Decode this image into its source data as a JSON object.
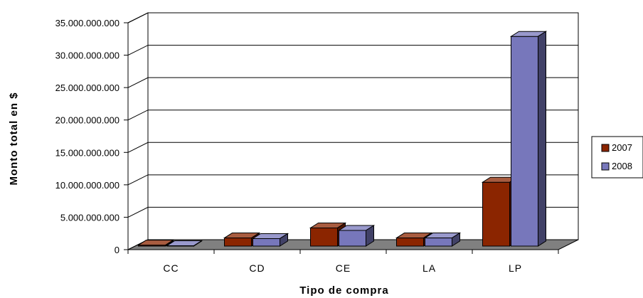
{
  "chart_data": {
    "type": "bar",
    "title": "",
    "xlabel": "Tipo de compra",
    "ylabel": "Monto total en $",
    "categories": [
      "CC",
      "CD",
      "CE",
      "LA",
      "LP"
    ],
    "series": [
      {
        "name": "2007",
        "values": [
          150000000,
          1300000000,
          2900000000,
          1300000000,
          10200000000
        ],
        "color": "#8B2500"
      },
      {
        "name": "2008",
        "values": [
          50000000,
          1200000000,
          2500000000,
          1300000000,
          33500000000
        ],
        "color": "#7777BB"
      }
    ],
    "ylim": [
      0,
      35000000000
    ],
    "yticks": [
      0,
      5000000000,
      10000000000,
      15000000000,
      20000000000,
      25000000000,
      30000000000,
      35000000000
    ],
    "ytick_labels": [
      "0",
      "5.000.000.000",
      "10.000.000.000",
      "15.000.000.000",
      "20.000.000.000",
      "25.000.000.000",
      "30.000.000.000",
      "35.000.000.000"
    ],
    "grid": true,
    "legend_position": "right",
    "floor_color": "#808080"
  }
}
